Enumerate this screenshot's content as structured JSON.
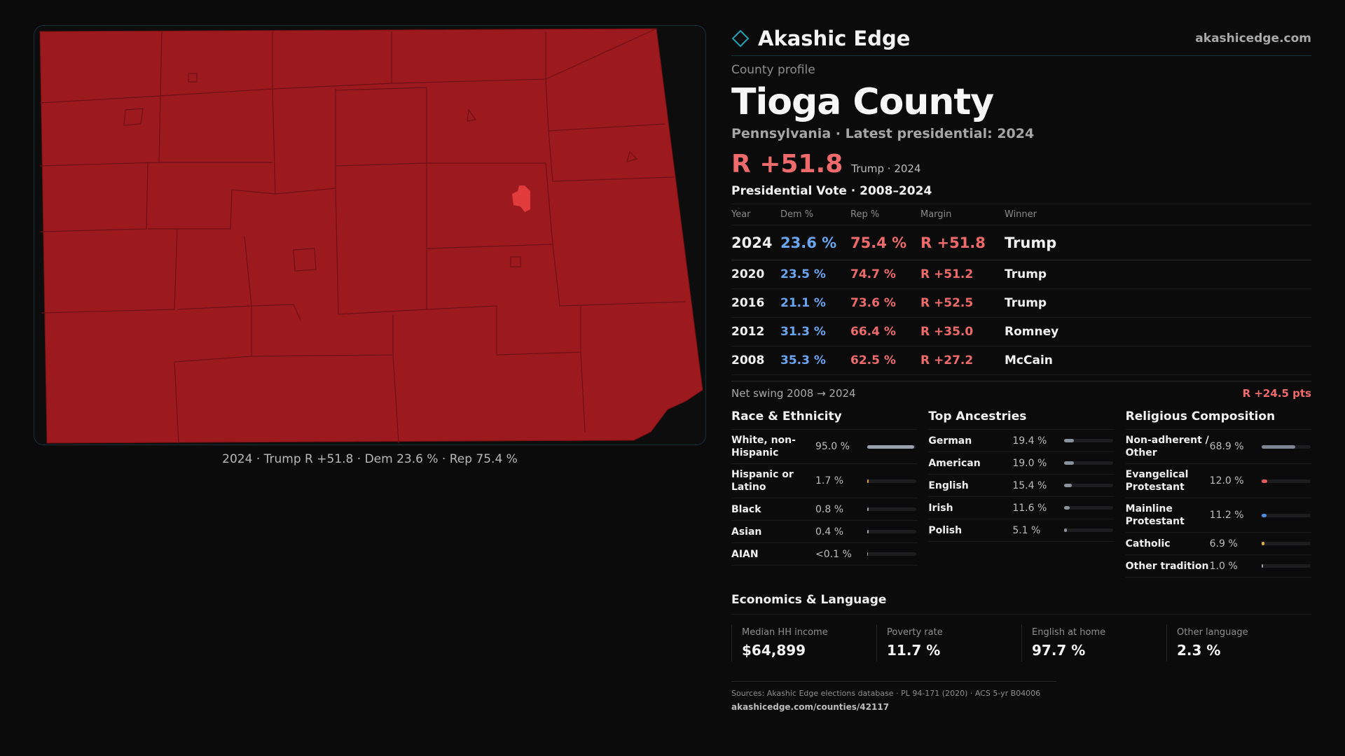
{
  "brand": {
    "name": "Akashic Edge",
    "site": "akashicedge.com"
  },
  "profile": {
    "kicker": "County profile",
    "county": "Tioga County",
    "subtitle": "Pennsylvania · Latest presidential: 2024",
    "headline_margin": "R +51.8",
    "headline_sub": "Trump · 2024"
  },
  "map": {
    "caption": "2024 · Trump R +51.8 · Dem 23.6 % · Rep 75.4 %",
    "fill_color": "#9c1a1e",
    "border_color": "#6e1014",
    "highlight_color": "#e23b3b"
  },
  "presidential": {
    "title": "Presidential Vote · 2008–2024",
    "headers": [
      "Year",
      "Dem %",
      "Rep %",
      "Margin",
      "Winner"
    ],
    "rows": [
      [
        "2024",
        "23.6 %",
        "75.4 %",
        "R +51.8",
        "Trump"
      ],
      [
        "2020",
        "23.5 %",
        "74.7 %",
        "R +51.2",
        "Trump"
      ],
      [
        "2016",
        "21.1 %",
        "73.6 %",
        "R +52.5",
        "Trump"
      ],
      [
        "2012",
        "31.3 %",
        "66.4 %",
        "R +35.0",
        "Romney"
      ],
      [
        "2008",
        "35.3 %",
        "62.5 %",
        "R +27.2",
        "McCain"
      ]
    ],
    "swing_label": "Net swing 2008 → 2024",
    "swing_value": "R +24.5 pts"
  },
  "race": {
    "title": "Race & Ethnicity",
    "rows": [
      {
        "label": "White, non-Hispanic",
        "value": "95.0 %",
        "share": 0.95,
        "color": "#9aa3ad"
      },
      {
        "label": "Hispanic or Latino",
        "value": "1.7 %",
        "share": 0.017,
        "color": "#e0a33a"
      },
      {
        "label": "Black",
        "value": "0.8 %",
        "share": 0.008,
        "color": "#9aa3ad"
      },
      {
        "label": "Asian",
        "value": "0.4 %",
        "share": 0.004,
        "color": "#9aa3ad"
      },
      {
        "label": "AIAN",
        "value": "<0.1 %",
        "share": 0.0,
        "color": "#9aa3ad"
      }
    ]
  },
  "ancestry": {
    "title": "Top Ancestries",
    "rows": [
      {
        "label": "German",
        "value": "19.4 %",
        "share": 0.194,
        "color": "#8a929b"
      },
      {
        "label": "American",
        "value": "19.0 %",
        "share": 0.19,
        "color": "#8a929b"
      },
      {
        "label": "English",
        "value": "15.4 %",
        "share": 0.154,
        "color": "#8a929b"
      },
      {
        "label": "Irish",
        "value": "11.6 %",
        "share": 0.116,
        "color": "#8a929b"
      },
      {
        "label": "Polish",
        "value": "5.1 %",
        "share": 0.051,
        "color": "#8a929b"
      }
    ]
  },
  "religion": {
    "title": "Religious Composition",
    "rows": [
      {
        "label": "Non-adherent / Other",
        "value": "68.9 %",
        "share": 0.689,
        "color": "#7c8591"
      },
      {
        "label": "Evangelical Protestant",
        "value": "12.0 %",
        "share": 0.12,
        "color": "#e55b5b"
      },
      {
        "label": "Mainline Protestant",
        "value": "11.2 %",
        "share": 0.112,
        "color": "#4a8de0"
      },
      {
        "label": "Catholic",
        "value": "6.9 %",
        "share": 0.069,
        "color": "#e0b23a"
      },
      {
        "label": "Other tradition",
        "value": "1.0 %",
        "share": 0.01,
        "color": "#9aa3ad"
      }
    ]
  },
  "economics": {
    "title": "Economics & Language",
    "stats": [
      {
        "label": "Median HH income",
        "value": "$64,899"
      },
      {
        "label": "Poverty rate",
        "value": "11.7 %"
      },
      {
        "label": "English at home",
        "value": "97.7 %"
      },
      {
        "label": "Other language",
        "value": "2.3 %"
      }
    ]
  },
  "footer": {
    "sources": "Sources: Akashic Edge elections database · PL 94-171 (2020) · ACS 5-yr B04006",
    "url": "akashicedge.com/counties/42117"
  }
}
